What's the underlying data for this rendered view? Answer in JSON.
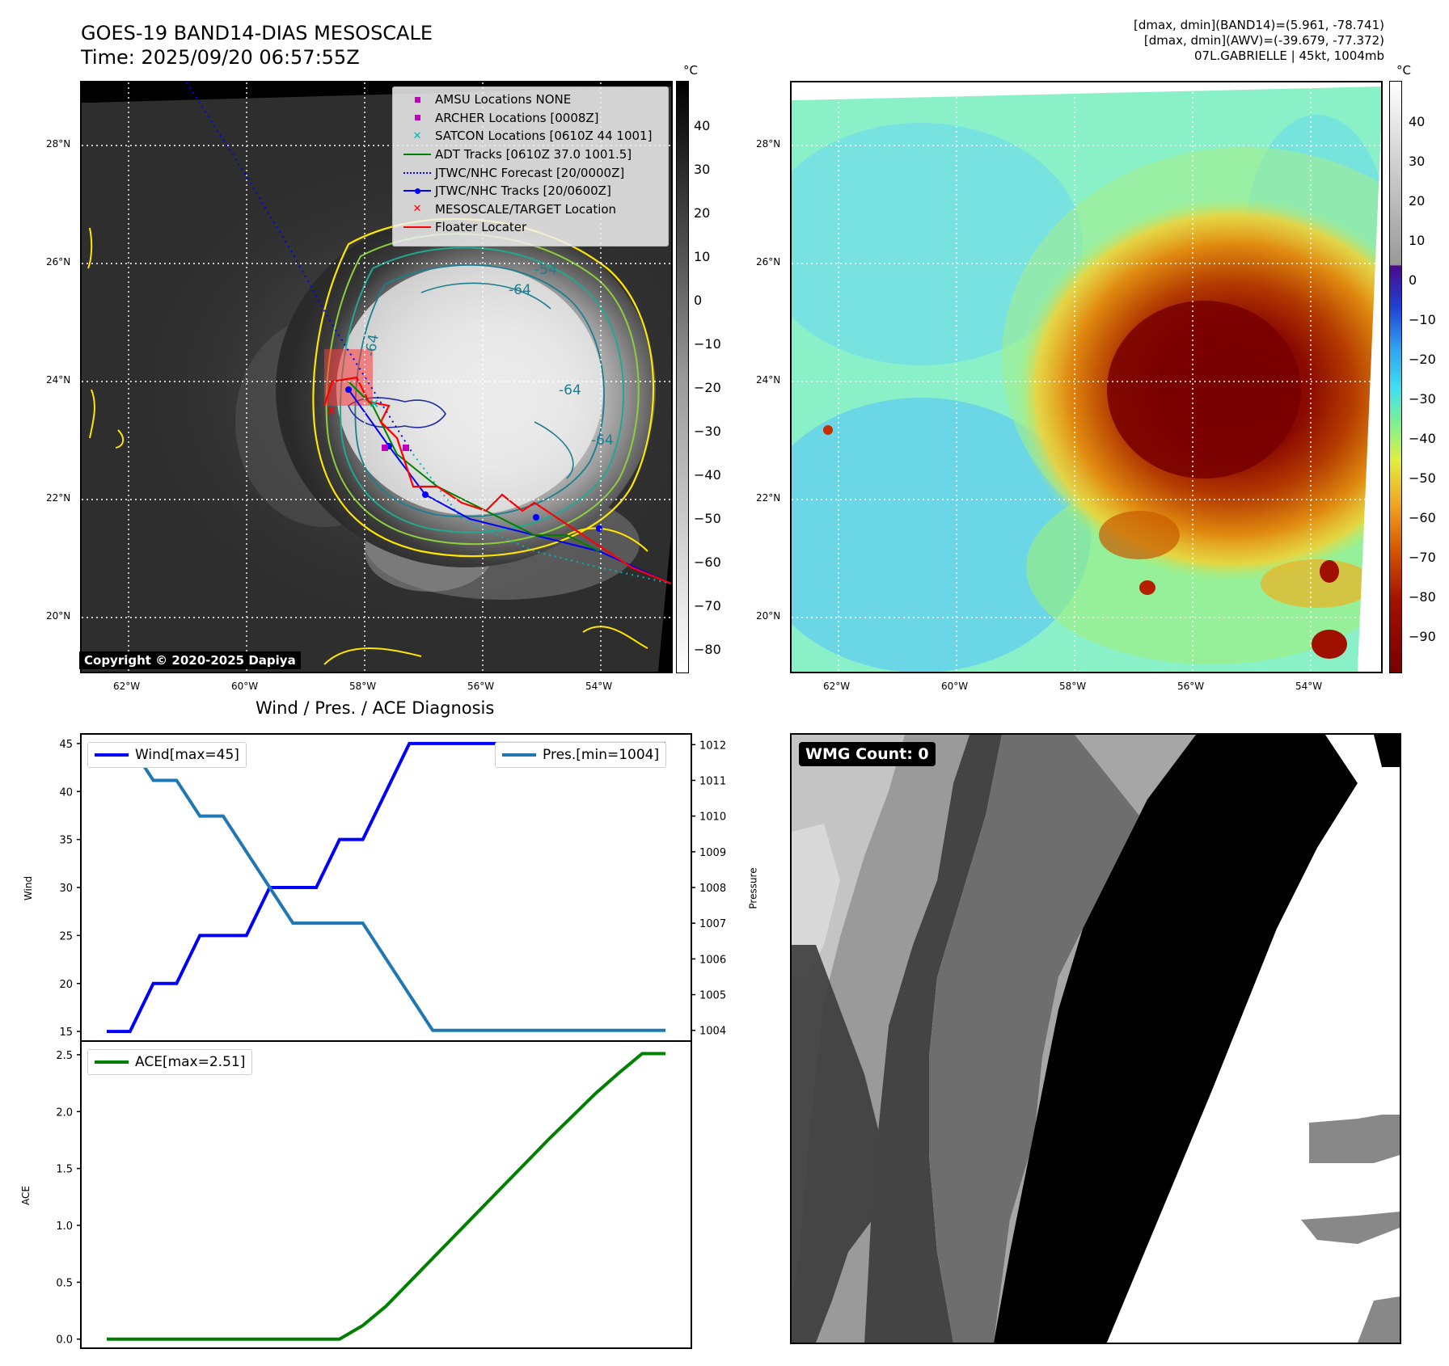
{
  "header": {
    "title_line1": "GOES-19 BAND14-DIAS MESOSCALE",
    "title_line2": "Time: 2025/09/20 06:57:55Z",
    "info_line1": "[dmax, dmin](BAND14)=(5.961, -78.741)",
    "info_line2": "[dmax, dmin](AWV)=(-39.679, -77.372)",
    "info_line3": "07L.GABRIELLE | 45kt, 1004mb"
  },
  "ir_panel": {
    "lat_labels": [
      "28°N",
      "26°N",
      "24°N",
      "22°N",
      "20°N"
    ],
    "lon_labels": [
      "62°W",
      "60°W",
      "58°W",
      "56°W",
      "54°W"
    ],
    "colorbar_unit": "°C",
    "colorbar_ticks": [
      "40",
      "30",
      "20",
      "10",
      "0",
      "−10",
      "−20",
      "−30",
      "−40",
      "−50",
      "−60",
      "−70",
      "−80"
    ],
    "contour_labels": [
      "-54",
      "-64",
      "-64",
      "-64",
      "-64"
    ],
    "copyright": "Copyright © 2020-2025 Dapiya",
    "legend": [
      {
        "label": "AMSU Locations NONE",
        "symbol": "square",
        "color": "#c000c0"
      },
      {
        "label": "ARCHER Locations [0008Z]",
        "symbol": "square",
        "color": "#c000c0"
      },
      {
        "label": "SATCON Locations [0610Z 44 1001]",
        "symbol": "x",
        "color": "#00b4b4"
      },
      {
        "label": "ADT Tracks [0610Z 37.0 1001.5]",
        "symbol": "line",
        "color": "#008000"
      },
      {
        "label": "JTWC/NHC Forecast [20/0000Z]",
        "symbol": "dotted",
        "color": "#0000ff"
      },
      {
        "label": "JTWC/NHC Tracks [20/0600Z]",
        "symbol": "line-dot",
        "color": "#0000ff"
      },
      {
        "label": "MESOSCALE/TARGET Location",
        "symbol": "x",
        "color": "#ff0000"
      },
      {
        "label": "Floater Locater",
        "symbol": "line",
        "color": "#ff0000"
      }
    ]
  },
  "awv_panel": {
    "lat_labels": [
      "28°N",
      "26°N",
      "24°N",
      "22°N",
      "20°N"
    ],
    "lon_labels": [
      "62°W",
      "60°W",
      "58°W",
      "56°W",
      "54°W"
    ],
    "colorbar_unit": "°C",
    "colorbar_ticks": [
      "40",
      "30",
      "20",
      "10",
      "0",
      "−10",
      "−20",
      "−30",
      "−40",
      "−50",
      "−60",
      "−70",
      "−80",
      "−90"
    ]
  },
  "wmg_panel": {
    "label": "WMG Count: 0"
  },
  "chart_data": [
    {
      "type": "line",
      "title": "Wind / Pres. / ACE Diagnosis",
      "ylabel": "Wind",
      "y2label": "Pressure",
      "ylim": [
        14,
        46
      ],
      "y2lim": [
        1003.7,
        1012.3
      ],
      "yticks": [
        15,
        20,
        25,
        30,
        35,
        40,
        45
      ],
      "y2ticks": [
        1004,
        1005,
        1006,
        1007,
        1008,
        1009,
        1010,
        1011,
        1012
      ],
      "x": [
        0,
        1,
        2,
        3,
        4,
        5,
        6,
        7,
        8,
        9,
        10,
        11,
        12,
        13,
        14,
        15,
        16,
        17,
        18,
        19,
        20,
        21,
        22,
        23,
        24
      ],
      "series": [
        {
          "name": "Wind[max=45]",
          "axis": "left",
          "color": "#0000ff",
          "values": [
            15,
            15,
            20,
            20,
            25,
            25,
            25,
            30,
            30,
            30,
            35,
            35,
            40,
            45,
            45,
            45,
            45,
            45,
            45,
            45,
            45,
            45,
            45,
            45,
            45
          ]
        },
        {
          "name": "Pres.[min=1004]",
          "axis": "right",
          "color": "#1f77b4",
          "values": [
            1012,
            1012,
            1011,
            1011,
            1010,
            1010,
            1009,
            1008,
            1007,
            1007,
            1007,
            1007,
            1006,
            1005,
            1004,
            1004,
            1004,
            1004,
            1004,
            1004,
            1004,
            1004,
            1004,
            1004,
            1004
          ]
        }
      ]
    },
    {
      "type": "line",
      "ylabel": "ACE",
      "ylim": [
        -0.08,
        2.62
      ],
      "yticks": [
        "0.0",
        "0.5",
        "1.0",
        "1.5",
        "2.0",
        "2.5"
      ],
      "x": [
        0,
        1,
        2,
        3,
        4,
        5,
        6,
        7,
        8,
        9,
        10,
        11,
        12,
        13,
        14,
        15,
        16,
        17,
        18,
        19,
        20,
        21,
        22,
        23,
        24
      ],
      "series": [
        {
          "name": "ACE[max=2.51]",
          "color": "#008000",
          "values": [
            0,
            0,
            0,
            0,
            0,
            0,
            0,
            0,
            0,
            0,
            0,
            0.12,
            0.29,
            0.5,
            0.71,
            0.92,
            1.13,
            1.34,
            1.55,
            1.76,
            1.96,
            2.16,
            2.34,
            2.51,
            2.51
          ]
        }
      ]
    }
  ]
}
